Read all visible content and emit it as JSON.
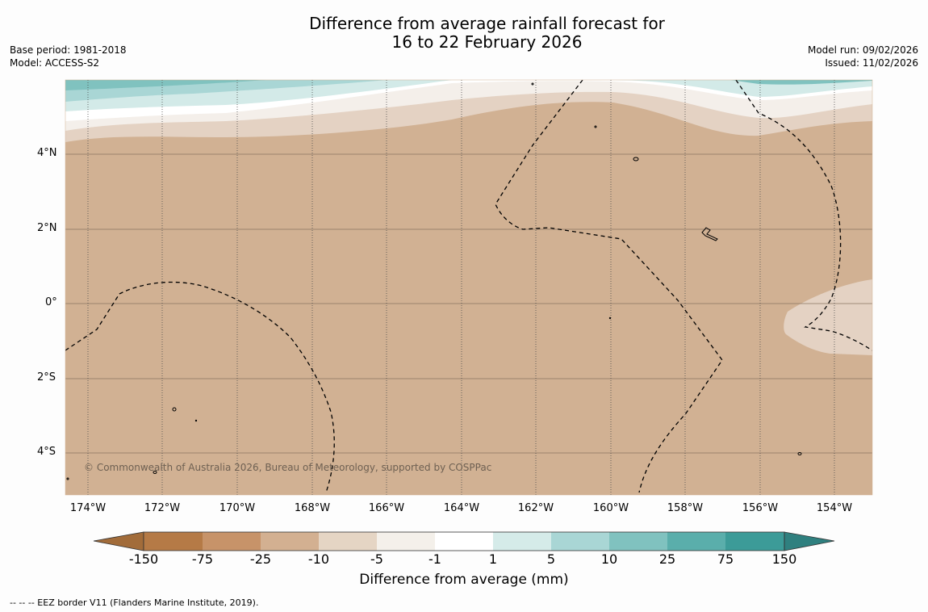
{
  "title": {
    "line1": "Difference from average rainfall forecast for",
    "line2": "16 to 22 February 2026"
  },
  "meta_left": {
    "base_period": "Base period: 1981-2018",
    "model": "Model: ACCESS-S2"
  },
  "meta_right": {
    "model_run": "Model run: 09/02/2026",
    "issued": "Issued: 11/02/2026"
  },
  "x_ticks": [
    "174°W",
    "172°W",
    "170°W",
    "168°W",
    "166°W",
    "164°W",
    "162°W",
    "160°W",
    "158°W",
    "156°W",
    "154°W"
  ],
  "y_ticks": [
    "4°N",
    "2°N",
    "0°",
    "2°S",
    "4°S"
  ],
  "copyright": "© Commonwealth of Australia 2026, Bureau of Meteorology, supported by COSPPac",
  "colorbar": {
    "labels": [
      "-150",
      "-75",
      "-25",
      "-10",
      "-5",
      "-1",
      "1",
      "5",
      "10",
      "25",
      "75",
      "150"
    ],
    "title": "Difference from average (mm)",
    "colors": [
      "#a26c3a",
      "#b57a46",
      "#c79369",
      "#d3b091",
      "#e5d5c4",
      "#f4f0ea",
      "#ffffff",
      "#d5ebe9",
      "#a9d6d5",
      "#80c2bf",
      "#5aaeab",
      "#3c9b98",
      "#2f807f"
    ]
  },
  "footnote": "--  --  -- EEZ border V11 (Flanders Marine Institute, 2019).",
  "map_data": {
    "lon_range": [
      -174.6,
      -153.0
    ],
    "lat_range": [
      -5.2,
      5.9
    ],
    "dominant_category": "-25 to -10",
    "eez_border_style": "dashed"
  }
}
